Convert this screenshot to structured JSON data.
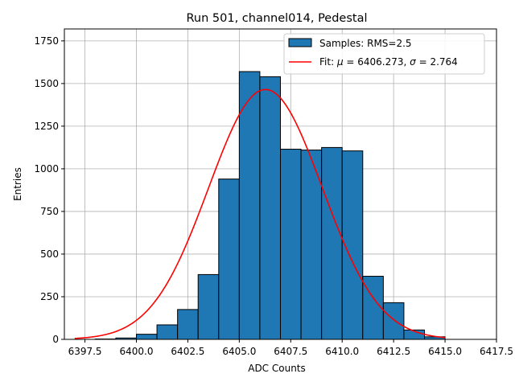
{
  "chart_data": {
    "type": "histogram",
    "title": "Run 501, channel014, Pedestal",
    "xlabel": "ADC Counts",
    "ylabel": "Entries",
    "xlim": [
      6396.5,
      6417.5
    ],
    "ylim": [
      0,
      1820
    ],
    "xticks": [
      6397.5,
      6400.0,
      6402.5,
      6405.0,
      6407.5,
      6410.0,
      6412.5,
      6415.0,
      6417.5
    ],
    "xtick_labels": [
      "6397.5",
      "6400.0",
      "6402.5",
      "6405.0",
      "6407.5",
      "6410.0",
      "6412.5",
      "6415.0",
      "6417.5"
    ],
    "yticks": [
      0,
      250,
      500,
      750,
      1000,
      1250,
      1500,
      1750
    ],
    "ytick_labels": [
      "0",
      "250",
      "500",
      "750",
      "1000",
      "1250",
      "1500",
      "1750"
    ],
    "grid": true,
    "legend_position": "top-right",
    "bins": {
      "edges": [
        6398,
        6399,
        6400,
        6401,
        6402,
        6403,
        6404,
        6405,
        6406,
        6407,
        6408,
        6409,
        6410,
        6411,
        6412,
        6413,
        6414,
        6415
      ],
      "counts": [
        2,
        8,
        30,
        85,
        175,
        380,
        940,
        1570,
        1540,
        1115,
        1110,
        1125,
        1105,
        370,
        215,
        55,
        15
      ]
    },
    "fit": {
      "mu": 6406.273,
      "sigma": 2.764,
      "amplitude": 1465,
      "x_range": [
        6397,
        6415
      ]
    },
    "series": [
      {
        "name": "Samples: RMS=2.5",
        "kind": "bars",
        "color": "#1f77b4",
        "edge_color": "#000000"
      },
      {
        "name": "Fit: μ = 6406.273, σ = 2.764",
        "kind": "line",
        "color": "#ff0000"
      }
    ]
  },
  "legend": {
    "samples_label": "Samples: RMS=2.5",
    "fit_prefix": "Fit: ",
    "mu_symbol": "μ",
    "mu_text": " = 6406.273, ",
    "sigma_symbol": "σ",
    "sigma_text": " = 2.764"
  }
}
